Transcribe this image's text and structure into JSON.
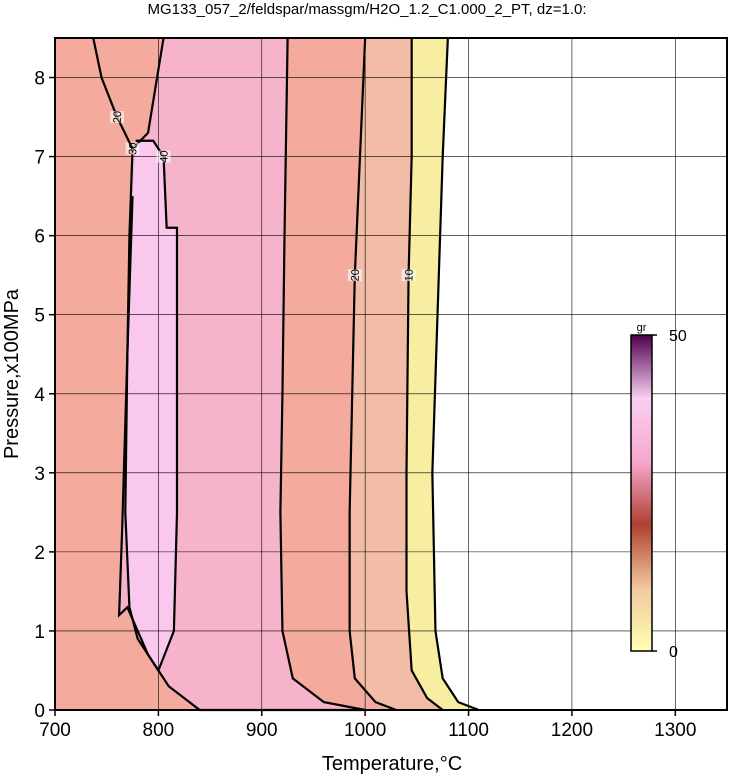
{
  "chart_data": {
    "type": "contour",
    "title": "MG133_057_2/feldspar/massgm/H2O_1.2_C1.000_2_PT, dz=1.0:",
    "x_label": "Temperature,°C",
    "y_label": "Pressure,x100MPa",
    "xlim": [
      700,
      1350
    ],
    "ylim": [
      0,
      8.5
    ],
    "xticks": [
      700,
      800,
      900,
      1000,
      1100,
      1200,
      1300
    ],
    "yticks": [
      0,
      1,
      2,
      3,
      4,
      5,
      6,
      7,
      8
    ],
    "grid": true,
    "contours": [
      {
        "level": 0,
        "color": "#f8eea2",
        "x": [
          1080,
          1075,
          1070,
          1065,
          1068,
          1075,
          1090,
          1110
        ],
        "y": [
          8.5,
          7,
          5,
          3,
          1,
          0.4,
          0.1,
          0
        ]
      },
      {
        "level": 10,
        "color": "#f2bca6",
        "x": [
          1045,
          1045,
          1042,
          1040,
          1040,
          1045,
          1060,
          1075
        ],
        "y": [
          8.5,
          7,
          5.5,
          3,
          1.5,
          0.5,
          0.15,
          0
        ]
      },
      {
        "level": 20,
        "color": "#f4aa9c",
        "x": [
          1000,
          995,
          990,
          985,
          985,
          990,
          1010,
          1030
        ],
        "y": [
          8.5,
          7,
          5.5,
          2.5,
          1,
          0.4,
          0.1,
          0
        ]
      },
      {
        "level": 30,
        "color": "#f6b4cc",
        "x": [
          805,
          790,
          775,
          772,
          770,
          765,
          762,
          770,
          790,
          810,
          840,
          1000,
          960,
          930,
          920,
          918,
          920,
          922,
          925
        ],
        "y": [
          8.5,
          7.3,
          7.1,
          6,
          4.5,
          2.3,
          1.2,
          1.3,
          0.7,
          0.3,
          0,
          0,
          0.1,
          0.4,
          1,
          2.5,
          4,
          6,
          8.5
        ]
      },
      {
        "level": 40,
        "color": "#fac8ec",
        "x": [
          778,
          795,
          805,
          808,
          818,
          818,
          815,
          800,
          780,
          772,
          768,
          770,
          775
        ],
        "y": [
          7.2,
          7.2,
          7.0,
          6.1,
          6.1,
          2.5,
          1.0,
          0.5,
          0.9,
          1.3,
          2.5,
          4.5,
          6.5
        ]
      },
      {
        "level": 20,
        "color": "none",
        "x": [
          737,
          745,
          760,
          775
        ],
        "y": [
          8.5,
          8,
          7.5,
          7.1
        ]
      }
    ],
    "colorbar": {
      "label": "gr",
      "lim": [
        0,
        50
      ],
      "ticks": [
        0,
        50
      ],
      "colors": [
        "#ffffb0",
        "#f0c8a0",
        "#b04030",
        "#f8a8d0",
        "#f8d0f0",
        "#500050"
      ]
    }
  }
}
